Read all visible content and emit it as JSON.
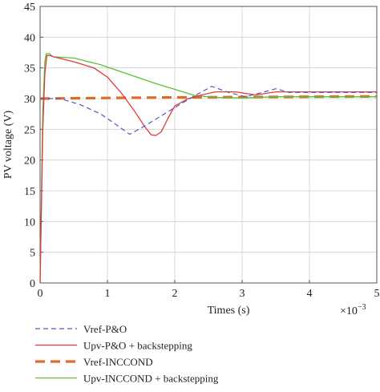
{
  "chart_data": {
    "type": "line",
    "xlabel": "Times (s)",
    "ylabel": "PV voltage (V)",
    "x_multiplier_label": "×10",
    "x_multiplier_exponent": "−3",
    "xlim": [
      0,
      5
    ],
    "ylim": [
      0,
      45
    ],
    "x_ticks": [
      0,
      1,
      2,
      3,
      4,
      5
    ],
    "y_ticks": [
      0,
      5,
      10,
      15,
      20,
      25,
      30,
      35,
      40,
      45
    ],
    "x_tick_labels": [
      "0",
      "1",
      "2",
      "3",
      "4",
      "5"
    ],
    "y_tick_labels": [
      "0",
      "5",
      "10",
      "15",
      "20",
      "25",
      "30",
      "35",
      "40",
      "45"
    ],
    "grid": true,
    "legend_position": "bottom",
    "series": [
      {
        "name": "Vref-P&O",
        "color": "#4a5cbf",
        "style": "dashed",
        "x": [
          0.0,
          0.1,
          0.3,
          0.6,
          0.9,
          1.1,
          1.33,
          1.5,
          1.8,
          2.1,
          2.35,
          2.55,
          2.8,
          3.05,
          3.3,
          3.5,
          3.7,
          4.0,
          5.0
        ],
        "y": [
          30.0,
          30.0,
          30.0,
          29.0,
          27.5,
          26.0,
          24.2,
          25.2,
          27.2,
          29.2,
          30.8,
          32.0,
          31.0,
          30.3,
          31.0,
          31.6,
          31.0,
          31.0,
          31.0
        ]
      },
      {
        "name": "Upv-P&O + backstepping",
        "color": "#e03b3b",
        "style": "solid",
        "x": [
          0.0,
          0.04,
          0.07,
          0.1,
          0.15,
          0.2,
          0.5,
          0.8,
          1.0,
          1.2,
          1.4,
          1.55,
          1.65,
          1.72,
          1.8,
          1.9,
          2.0,
          2.2,
          2.4,
          2.6,
          2.9,
          3.2,
          3.5,
          4.0,
          5.0
        ],
        "y": [
          0.0,
          25.0,
          34.0,
          37.0,
          37.0,
          36.8,
          36.0,
          35.0,
          33.5,
          31.0,
          28.0,
          25.5,
          24.1,
          24.0,
          24.6,
          26.8,
          28.8,
          30.0,
          30.6,
          31.1,
          31.1,
          30.6,
          31.1,
          31.1,
          31.1
        ]
      },
      {
        "name": "Vref-INCCOND",
        "color": "#e06a2a",
        "style": "thick-dashed",
        "x": [
          0.0,
          1.0,
          2.0,
          3.0,
          4.0,
          5.0
        ],
        "y": [
          30.0,
          30.1,
          30.2,
          30.25,
          30.3,
          30.35
        ]
      },
      {
        "name": "Upv-INCCOND + backstepping",
        "color": "#5cc035",
        "style": "solid",
        "x": [
          0.0,
          0.04,
          0.07,
          0.09,
          0.14,
          0.17,
          0.2,
          0.5,
          0.9,
          1.3,
          1.7,
          2.0,
          2.3,
          2.6,
          3.0,
          3.5,
          4.0,
          5.0
        ],
        "y": [
          0.0,
          28.0,
          36.0,
          37.3,
          37.3,
          37.0,
          36.8,
          36.6,
          35.5,
          34.0,
          32.5,
          31.5,
          30.5,
          30.2,
          30.1,
          30.3,
          30.3,
          30.3
        ]
      }
    ]
  }
}
